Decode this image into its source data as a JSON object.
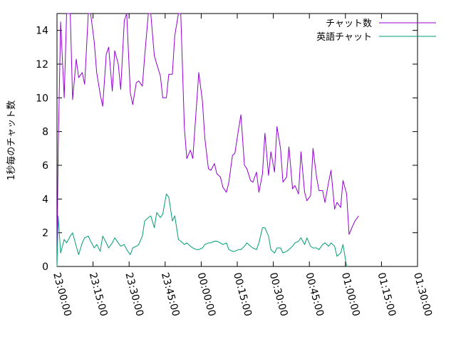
{
  "chart_data": {
    "type": "line",
    "title": "",
    "xlabel": "",
    "ylabel": "1秒毎のチャット数",
    "ylim": [
      0,
      15
    ],
    "yticks": [
      0,
      2,
      4,
      6,
      8,
      10,
      12,
      14
    ],
    "xlim": [
      "23:00:00",
      "01:30:00"
    ],
    "xticks": [
      "23:00:00",
      "23:15:00",
      "23:30:00",
      "23:45:00",
      "00:00:00",
      "00:15:00",
      "00:30:00",
      "00:45:00",
      "01:00:00",
      "01:15:00",
      "01:30:00"
    ],
    "legend_position": "top-right",
    "grid": false,
    "series": [
      {
        "name": "チャット数",
        "color": "#9400d3",
        "points": [
          [
            "23:00:00",
            0.5
          ],
          [
            "23:00:30",
            7.0
          ],
          [
            "23:01:30",
            14.5
          ],
          [
            "23:03:00",
            10.0
          ],
          [
            "23:04:00",
            15.0
          ],
          [
            "23:05:30",
            15.0
          ],
          [
            "23:06:30",
            9.9
          ],
          [
            "23:08:00",
            12.3
          ],
          [
            "23:09:00",
            11.2
          ],
          [
            "23:10:30",
            11.5
          ],
          [
            "23:11:30",
            10.8
          ],
          [
            "23:13:00",
            15.0
          ],
          [
            "23:14:00",
            15.0
          ],
          [
            "23:15:30",
            13.3
          ],
          [
            "23:16:30",
            11.5
          ],
          [
            "23:18:00",
            10.2
          ],
          [
            "23:19:00",
            9.5
          ],
          [
            "23:20:30",
            12.6
          ],
          [
            "23:21:30",
            13.0
          ],
          [
            "23:23:00",
            10.4
          ],
          [
            "23:24:00",
            12.8
          ],
          [
            "23:25:30",
            12.0
          ],
          [
            "23:26:30",
            10.5
          ],
          [
            "23:28:00",
            14.6
          ],
          [
            "23:29:00",
            15.0
          ],
          [
            "23:30:30",
            10.3
          ],
          [
            "23:31:30",
            9.6
          ],
          [
            "23:33:00",
            10.9
          ],
          [
            "23:34:00",
            11.0
          ],
          [
            "23:35:30",
            10.7
          ],
          [
            "23:36:30",
            12.5
          ],
          [
            "23:38:00",
            15.0
          ],
          [
            "23:39:00",
            15.0
          ],
          [
            "23:40:30",
            12.5
          ],
          [
            "23:41:30",
            12.0
          ],
          [
            "23:43:00",
            11.3
          ],
          [
            "23:44:00",
            10.0
          ],
          [
            "23:45:30",
            10.0
          ],
          [
            "23:46:30",
            11.4
          ],
          [
            "23:48:00",
            11.4
          ],
          [
            "23:49:00",
            13.7
          ],
          [
            "23:50:30",
            15.0
          ],
          [
            "23:51:30",
            15.0
          ],
          [
            "23:53:00",
            8.2
          ],
          [
            "23:54:00",
            6.4
          ],
          [
            "23:55:30",
            6.9
          ],
          [
            "23:56:30",
            6.4
          ],
          [
            "23:58:00",
            9.5
          ],
          [
            "23:59:00",
            11.5
          ],
          [
            "00:00:30",
            9.8
          ],
          [
            "00:01:30",
            7.6
          ],
          [
            "00:03:00",
            5.8
          ],
          [
            "00:04:00",
            5.7
          ],
          [
            "00:05:30",
            6.1
          ],
          [
            "00:06:30",
            5.5
          ],
          [
            "00:08:00",
            5.3
          ],
          [
            "00:09:00",
            4.7
          ],
          [
            "00:10:30",
            4.4
          ],
          [
            "00:11:30",
            5.0
          ],
          [
            "00:13:00",
            6.6
          ],
          [
            "00:14:00",
            6.7
          ],
          [
            "00:15:30",
            8.1
          ],
          [
            "00:16:30",
            9.0
          ],
          [
            "00:18:00",
            6.0
          ],
          [
            "00:19:00",
            5.8
          ],
          [
            "00:20:30",
            5.1
          ],
          [
            "00:21:30",
            5.0
          ],
          [
            "00:23:00",
            5.6
          ],
          [
            "00:24:00",
            4.4
          ],
          [
            "00:25:30",
            5.5
          ],
          [
            "00:26:30",
            7.9
          ],
          [
            "00:28:00",
            5.4
          ],
          [
            "00:29:00",
            6.8
          ],
          [
            "00:30:30",
            5.6
          ],
          [
            "00:31:30",
            8.3
          ],
          [
            "00:33:00",
            7.0
          ],
          [
            "00:34:00",
            5.0
          ],
          [
            "00:35:30",
            5.3
          ],
          [
            "00:36:30",
            7.1
          ],
          [
            "00:38:00",
            4.6
          ],
          [
            "00:39:00",
            4.8
          ],
          [
            "00:40:30",
            4.3
          ],
          [
            "00:41:30",
            6.8
          ],
          [
            "00:43:00",
            4.4
          ],
          [
            "00:44:00",
            3.9
          ],
          [
            "00:45:30",
            4.2
          ],
          [
            "00:46:30",
            7.0
          ],
          [
            "00:48:00",
            5.3
          ],
          [
            "00:49:00",
            4.5
          ],
          [
            "00:50:30",
            4.5
          ],
          [
            "00:51:30",
            3.8
          ],
          [
            "00:53:00",
            5.0
          ],
          [
            "00:54:00",
            5.7
          ],
          [
            "00:55:30",
            3.4
          ],
          [
            "00:56:30",
            3.8
          ],
          [
            "00:58:00",
            3.5
          ],
          [
            "00:59:00",
            5.1
          ],
          [
            "01:00:30",
            4.3
          ],
          [
            "01:01:30",
            1.9
          ],
          [
            "01:03:00",
            2.4
          ],
          [
            "01:04:00",
            2.7
          ],
          [
            "01:05:30",
            3.0
          ]
        ]
      },
      {
        "name": "英語チャット",
        "color": "#009e73",
        "points": [
          [
            "23:00:00",
            0.0
          ],
          [
            "23:00:30",
            3.0
          ],
          [
            "23:01:30",
            0.8
          ],
          [
            "23:03:00",
            1.6
          ],
          [
            "23:04:00",
            1.4
          ],
          [
            "23:05:30",
            1.8
          ],
          [
            "23:06:30",
            2.0
          ],
          [
            "23:08:00",
            1.2
          ],
          [
            "23:09:00",
            0.7
          ],
          [
            "23:10:30",
            1.4
          ],
          [
            "23:11:30",
            1.7
          ],
          [
            "23:13:00",
            1.8
          ],
          [
            "23:14:00",
            1.5
          ],
          [
            "23:15:30",
            1.1
          ],
          [
            "23:16:30",
            1.3
          ],
          [
            "23:18:00",
            0.9
          ],
          [
            "23:19:00",
            1.8
          ],
          [
            "23:20:30",
            1.4
          ],
          [
            "23:21:30",
            1.1
          ],
          [
            "23:23:00",
            1.4
          ],
          [
            "23:24:00",
            1.7
          ],
          [
            "23:25:30",
            1.4
          ],
          [
            "23:26:30",
            1.2
          ],
          [
            "23:28:00",
            1.3
          ],
          [
            "23:29:00",
            1.0
          ],
          [
            "23:30:30",
            0.7
          ],
          [
            "23:31:30",
            1.1
          ],
          [
            "23:33:00",
            1.2
          ],
          [
            "23:34:00",
            1.3
          ],
          [
            "23:35:30",
            1.8
          ],
          [
            "23:36:30",
            2.7
          ],
          [
            "23:38:00",
            2.9
          ],
          [
            "23:39:00",
            3.0
          ],
          [
            "23:40:30",
            2.3
          ],
          [
            "23:41:30",
            3.2
          ],
          [
            "23:43:00",
            2.9
          ],
          [
            "23:44:00",
            3.1
          ],
          [
            "23:45:30",
            4.3
          ],
          [
            "23:46:30",
            4.1
          ],
          [
            "23:48:00",
            2.7
          ],
          [
            "23:49:00",
            3.0
          ],
          [
            "23:50:30",
            1.6
          ],
          [
            "23:51:30",
            1.5
          ],
          [
            "23:53:00",
            1.3
          ],
          [
            "23:54:00",
            1.4
          ],
          [
            "23:55:30",
            1.2
          ],
          [
            "23:56:30",
            1.1
          ],
          [
            "23:58:00",
            1.0
          ],
          [
            "23:59:00",
            1.0
          ],
          [
            "00:00:30",
            1.1
          ],
          [
            "00:01:30",
            1.3
          ],
          [
            "00:03:00",
            1.4
          ],
          [
            "00:04:00",
            1.4
          ],
          [
            "00:05:30",
            1.5
          ],
          [
            "00:06:30",
            1.5
          ],
          [
            "00:08:00",
            1.4
          ],
          [
            "00:09:00",
            1.3
          ],
          [
            "00:10:30",
            1.4
          ],
          [
            "00:11:30",
            1.0
          ],
          [
            "00:13:00",
            0.9
          ],
          [
            "00:14:00",
            0.9
          ],
          [
            "00:15:30",
            1.0
          ],
          [
            "00:16:30",
            1.0
          ],
          [
            "00:18:00",
            1.2
          ],
          [
            "00:19:00",
            1.4
          ],
          [
            "00:20:30",
            1.2
          ],
          [
            "00:21:30",
            1.1
          ],
          [
            "00:23:00",
            1.0
          ],
          [
            "00:24:00",
            1.4
          ],
          [
            "00:25:30",
            2.3
          ],
          [
            "00:26:30",
            2.3
          ],
          [
            "00:28:00",
            1.8
          ],
          [
            "00:29:00",
            1.0
          ],
          [
            "00:30:30",
            0.8
          ],
          [
            "00:31:30",
            1.1
          ],
          [
            "00:33:00",
            1.1
          ],
          [
            "00:34:00",
            0.8
          ],
          [
            "00:35:30",
            0.9
          ],
          [
            "00:36:30",
            1.0
          ],
          [
            "00:38:00",
            1.2
          ],
          [
            "00:39:00",
            1.4
          ],
          [
            "00:40:30",
            1.5
          ],
          [
            "00:41:30",
            1.7
          ],
          [
            "00:43:00",
            1.3
          ],
          [
            "00:44:00",
            1.7
          ],
          [
            "00:45:30",
            1.2
          ],
          [
            "00:46:30",
            1.1
          ],
          [
            "00:48:00",
            1.1
          ],
          [
            "00:49:00",
            1.0
          ],
          [
            "00:50:30",
            1.3
          ],
          [
            "00:51:30",
            1.4
          ],
          [
            "00:53:00",
            1.2
          ],
          [
            "00:54:00",
            1.4
          ],
          [
            "00:55:30",
            1.2
          ],
          [
            "00:56:30",
            0.6
          ],
          [
            "00:58:00",
            0.8
          ],
          [
            "00:59:00",
            1.3
          ],
          [
            "01:00:30",
            0.0
          ]
        ]
      }
    ]
  }
}
